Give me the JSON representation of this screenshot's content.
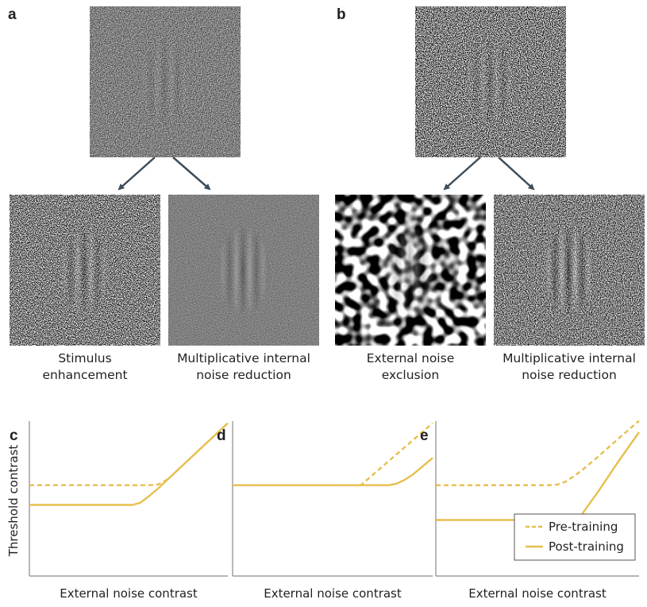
{
  "panel_a": {
    "label": "a",
    "captions": [
      [
        "Stimulus",
        "enhancement"
      ],
      [
        "Multiplicative internal",
        "noise reduction"
      ]
    ]
  },
  "panel_b": {
    "label": "b",
    "captions": [
      [
        "External noise",
        "exclusion"
      ],
      [
        "Multiplicative internal",
        "noise reduction"
      ]
    ]
  },
  "chart_data": [
    {
      "type": "line",
      "label": "c",
      "ylabel": "Threshold contrast",
      "xlabel": "External noise contrast",
      "x": [
        0,
        5.2,
        5.6,
        6,
        6.5,
        7,
        8,
        9,
        10
      ],
      "xlim": [
        0,
        10
      ],
      "ylim": [
        0,
        10.5
      ],
      "series": [
        {
          "name": "Pre-training",
          "color": "#e6bf4e",
          "style": "dashed",
          "values": [
            6,
            6,
            6,
            6,
            6.05,
            6.42,
            7.65,
            8.88,
            10.1
          ]
        },
        {
          "name": "Post-training",
          "color": "#e6bf4e",
          "style": "solid",
          "values": [
            4.7,
            4.7,
            4.85,
            5.25,
            5.8,
            6.42,
            7.65,
            8.88,
            10.1
          ]
        }
      ]
    },
    {
      "type": "line",
      "label": "d",
      "xlabel": "External noise contrast",
      "x": [
        0,
        6.4,
        7,
        7.8,
        8.2,
        8.6,
        9,
        10
      ],
      "xlim": [
        0,
        10
      ],
      "ylim": [
        0,
        10.5
      ],
      "series": [
        {
          "name": "Pre-training",
          "color": "#e6bf4e",
          "style": "dashed",
          "values": [
            6,
            6,
            6.68,
            7.59,
            8.05,
            8.5,
            8.96,
            10.1
          ]
        },
        {
          "name": "Post-training",
          "color": "#e6bf4e",
          "style": "solid",
          "values": [
            6,
            6,
            6,
            6,
            6.1,
            6.35,
            6.7,
            7.8
          ]
        }
      ]
    },
    {
      "type": "line",
      "label": "e",
      "xlabel": "External noise contrast",
      "legend": "lower right",
      "x": [
        0,
        5.6,
        6,
        6.4,
        6.8,
        7.2,
        8,
        9,
        10
      ],
      "xlim": [
        0,
        10
      ],
      "ylim": [
        0,
        10.5
      ],
      "series": [
        {
          "name": "Pre-training",
          "color": "#e6bf4e",
          "style": "dashed",
          "values": [
            6,
            6,
            6.05,
            6.25,
            6.6,
            7.0,
            7.9,
            9.1,
            10.26
          ]
        },
        {
          "name": "Post-training",
          "color": "#e6bf4e",
          "style": "solid",
          "values": [
            3.7,
            3.7,
            3.7,
            3.7,
            3.8,
            4.1,
            5.6,
            7.6,
            9.5
          ]
        }
      ]
    }
  ]
}
